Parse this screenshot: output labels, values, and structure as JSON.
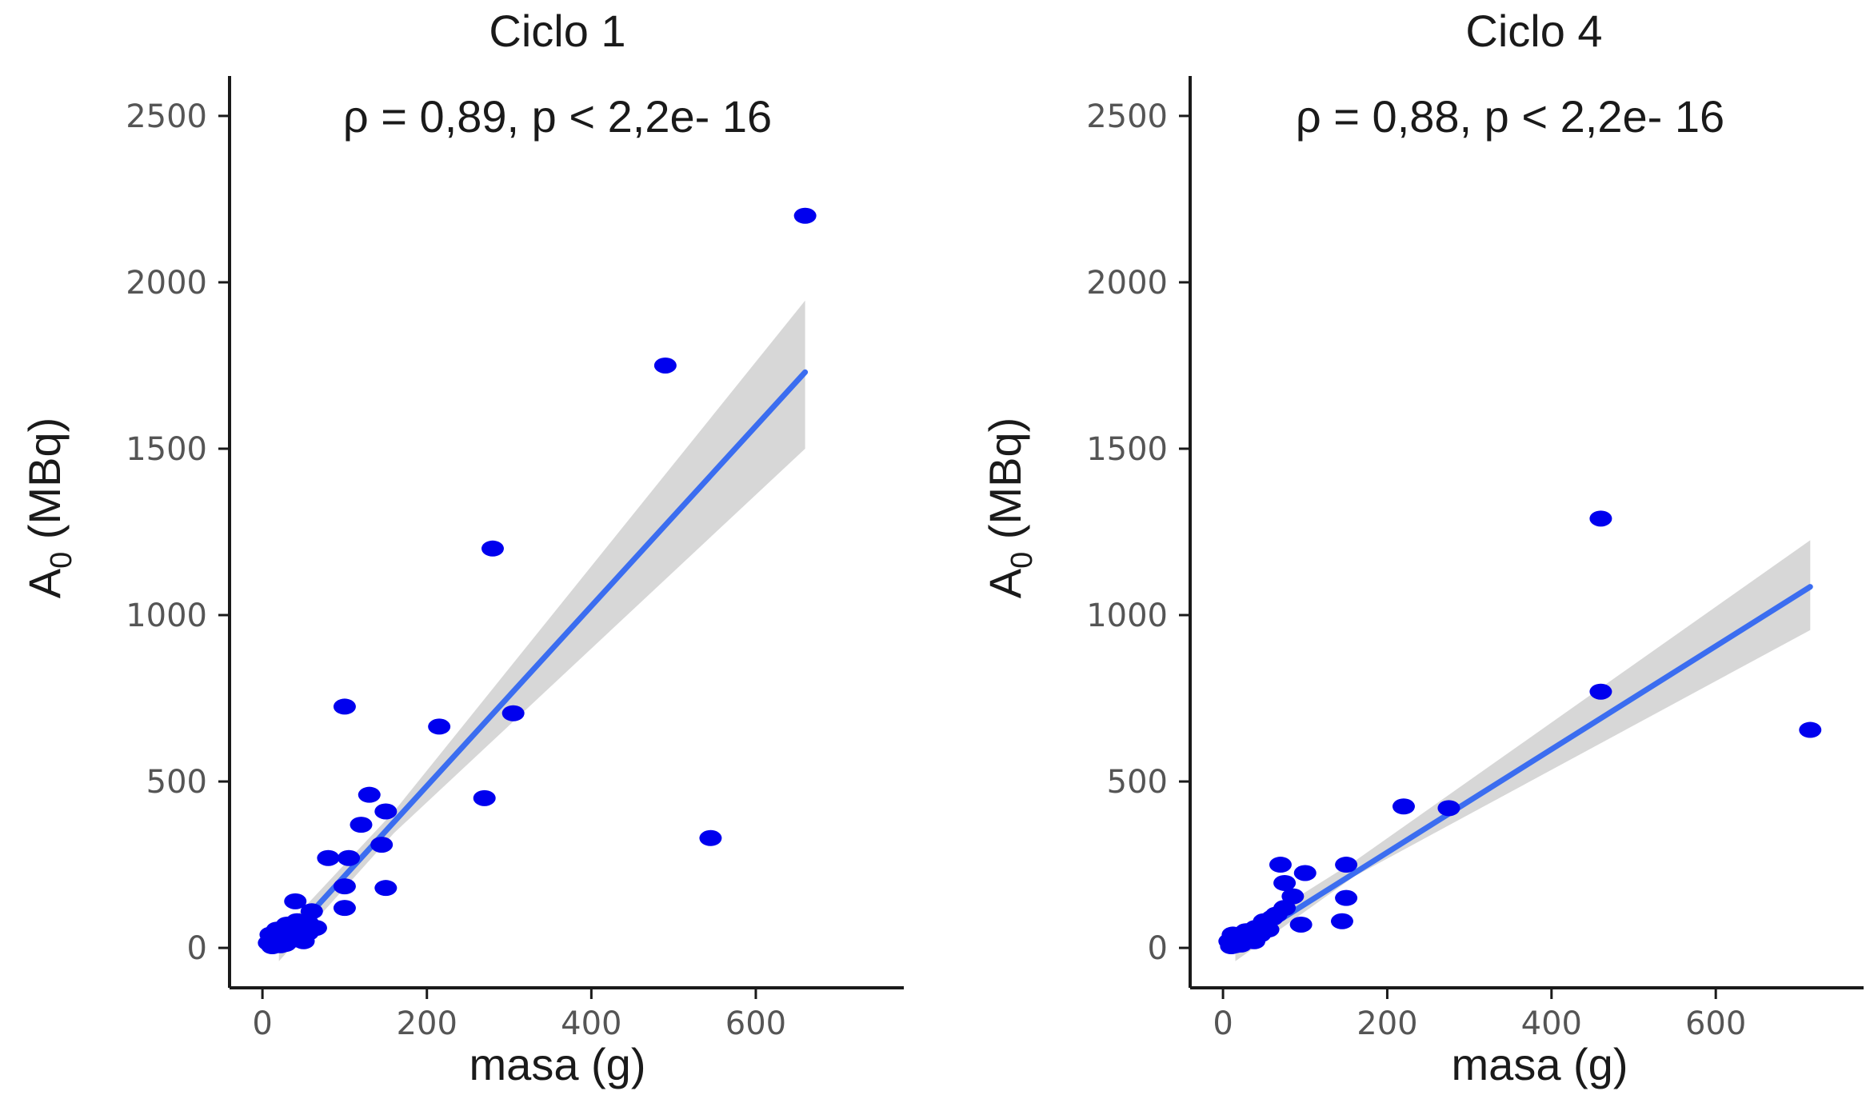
{
  "colors": {
    "points": "#0000ee",
    "fit_line": "#3b6df0",
    "ci_band": "#d3d3d3",
    "axis": "#1a1a1a",
    "tick_text": "#555555"
  },
  "chart_data": [
    {
      "type": "scatter",
      "title": "Ciclo 1",
      "annotation": "ρ = 0,89, p < 2,2e- 16",
      "xlabel": "masa (g)",
      "ylabel": {
        "main": "A",
        "sub": "0",
        "unit": " (MBq)"
      },
      "xlim": [
        -40,
        780
      ],
      "ylim": [
        -120,
        2620
      ],
      "xticks": [
        0,
        200,
        400,
        600
      ],
      "yticks": [
        0,
        500,
        1000,
        1500,
        2000,
        2500
      ],
      "grid": false,
      "legend": "none",
      "points": [
        {
          "x": 660,
          "y": 2200
        },
        {
          "x": 490,
          "y": 1750
        },
        {
          "x": 280,
          "y": 1200
        },
        {
          "x": 305,
          "y": 705
        },
        {
          "x": 100,
          "y": 725
        },
        {
          "x": 215,
          "y": 665
        },
        {
          "x": 270,
          "y": 450
        },
        {
          "x": 545,
          "y": 330
        },
        {
          "x": 130,
          "y": 460
        },
        {
          "x": 150,
          "y": 410
        },
        {
          "x": 120,
          "y": 370
        },
        {
          "x": 145,
          "y": 310
        },
        {
          "x": 80,
          "y": 270
        },
        {
          "x": 105,
          "y": 270
        },
        {
          "x": 100,
          "y": 185
        },
        {
          "x": 150,
          "y": 180
        },
        {
          "x": 100,
          "y": 120
        },
        {
          "x": 40,
          "y": 140
        },
        {
          "x": 60,
          "y": 110
        },
        {
          "x": 55,
          "y": 75
        },
        {
          "x": 45,
          "y": 60
        },
        {
          "x": 35,
          "y": 50
        },
        {
          "x": 30,
          "y": 40
        },
        {
          "x": 25,
          "y": 30
        },
        {
          "x": 20,
          "y": 20
        },
        {
          "x": 15,
          "y": 10
        },
        {
          "x": 10,
          "y": 40
        },
        {
          "x": 8,
          "y": 15
        },
        {
          "x": 12,
          "y": 5
        },
        {
          "x": 22,
          "y": 8
        },
        {
          "x": 28,
          "y": 12
        },
        {
          "x": 38,
          "y": 25
        },
        {
          "x": 48,
          "y": 35
        },
        {
          "x": 55,
          "y": 45
        },
        {
          "x": 42,
          "y": 80
        },
        {
          "x": 65,
          "y": 60
        },
        {
          "x": 18,
          "y": 55
        },
        {
          "x": 30,
          "y": 70
        },
        {
          "x": 50,
          "y": 20
        }
      ],
      "fit": {
        "x0": 20,
        "x1": 660,
        "y0": 0,
        "y1": 1730
      },
      "band": {
        "lo0": -40,
        "hi0": 40,
        "lo1": 1500,
        "hi1": 1945,
        "mid_x": 160,
        "mid_lo": 345,
        "mid_hi": 410
      }
    },
    {
      "type": "scatter",
      "title": "Ciclo 4",
      "annotation": "ρ = 0,88, p < 2,2e- 16",
      "xlabel": "masa (g)",
      "ylabel": {
        "main": "A",
        "sub": "0",
        "unit": " (MBq)"
      },
      "xlim": [
        -40,
        780
      ],
      "ylim": [
        -120,
        2620
      ],
      "xticks": [
        0,
        200,
        400,
        600
      ],
      "yticks": [
        0,
        500,
        1000,
        1500,
        2000,
        2500
      ],
      "grid": false,
      "legend": "none",
      "points": [
        {
          "x": 460,
          "y": 1290
        },
        {
          "x": 460,
          "y": 770
        },
        {
          "x": 715,
          "y": 655
        },
        {
          "x": 220,
          "y": 425
        },
        {
          "x": 275,
          "y": 420
        },
        {
          "x": 70,
          "y": 250
        },
        {
          "x": 150,
          "y": 250
        },
        {
          "x": 100,
          "y": 225
        },
        {
          "x": 75,
          "y": 195
        },
        {
          "x": 85,
          "y": 155
        },
        {
          "x": 150,
          "y": 150
        },
        {
          "x": 145,
          "y": 80
        },
        {
          "x": 95,
          "y": 70
        },
        {
          "x": 60,
          "y": 90
        },
        {
          "x": 50,
          "y": 80
        },
        {
          "x": 40,
          "y": 60
        },
        {
          "x": 35,
          "y": 45
        },
        {
          "x": 30,
          "y": 35
        },
        {
          "x": 25,
          "y": 25
        },
        {
          "x": 20,
          "y": 15
        },
        {
          "x": 15,
          "y": 8
        },
        {
          "x": 10,
          "y": 5
        },
        {
          "x": 8,
          "y": 20
        },
        {
          "x": 18,
          "y": 30
        },
        {
          "x": 28,
          "y": 50
        },
        {
          "x": 45,
          "y": 40
        },
        {
          "x": 55,
          "y": 55
        },
        {
          "x": 65,
          "y": 100
        },
        {
          "x": 75,
          "y": 120
        },
        {
          "x": 22,
          "y": 10
        },
        {
          "x": 38,
          "y": 20
        },
        {
          "x": 12,
          "y": 40
        }
      ],
      "fit": {
        "x0": 15,
        "x1": 715,
        "y0": 0,
        "y1": 1085
      },
      "band": {
        "lo0": -40,
        "hi0": 35,
        "lo1": 955,
        "hi1": 1225,
        "mid_x": 160,
        "mid_lo": 215,
        "mid_hi": 260
      }
    }
  ]
}
